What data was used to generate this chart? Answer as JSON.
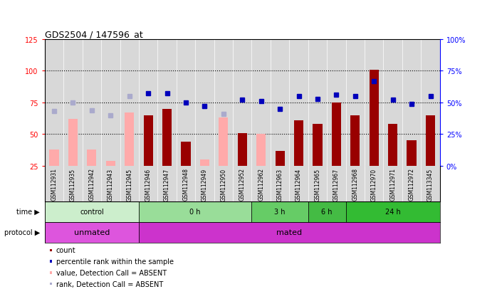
{
  "title": "GDS2504 / 147596_at",
  "samples": [
    "GSM112931",
    "GSM112935",
    "GSM112942",
    "GSM112943",
    "GSM112945",
    "GSM112946",
    "GSM112947",
    "GSM112948",
    "GSM112949",
    "GSM112950",
    "GSM112952",
    "GSM112962",
    "GSM112963",
    "GSM112964",
    "GSM112965",
    "GSM112967",
    "GSM112968",
    "GSM112970",
    "GSM112971",
    "GSM112972",
    "GSM113345"
  ],
  "count_values": [
    null,
    null,
    null,
    null,
    null,
    65,
    70,
    44,
    null,
    null,
    51,
    null,
    37,
    61,
    58,
    75,
    65,
    101,
    58,
    45,
    65
  ],
  "count_absent": [
    38,
    62,
    38,
    29,
    67,
    null,
    null,
    null,
    30,
    63,
    null,
    50,
    null,
    null,
    null,
    null,
    null,
    null,
    null,
    null,
    null
  ],
  "rank_present": [
    null,
    null,
    null,
    null,
    null,
    57,
    57,
    50,
    47,
    null,
    52,
    51,
    45,
    55,
    53,
    56,
    55,
    67,
    52,
    49,
    55
  ],
  "rank_absent": [
    43,
    50,
    44,
    40,
    55,
    null,
    null,
    null,
    47,
    41,
    null,
    null,
    null,
    null,
    null,
    null,
    null,
    null,
    null,
    null,
    null
  ],
  "ylim_left": [
    25,
    125
  ],
  "ylim_right": [
    0,
    100
  ],
  "yticks_left": [
    25,
    50,
    75,
    100,
    125
  ],
  "yticks_right": [
    0,
    25,
    50,
    75,
    100
  ],
  "ytick_labels_right": [
    "0%",
    "25%",
    "50%",
    "75%",
    "100%"
  ],
  "hlines": [
    50,
    75,
    100
  ],
  "time_groups": [
    {
      "label": "control",
      "start": 0,
      "end": 5,
      "color": "#cceecc"
    },
    {
      "label": "0 h",
      "start": 5,
      "end": 11,
      "color": "#99dd99"
    },
    {
      "label": "3 h",
      "start": 11,
      "end": 14,
      "color": "#66cc66"
    },
    {
      "label": "6 h",
      "start": 14,
      "end": 16,
      "color": "#44bb44"
    },
    {
      "label": "24 h",
      "start": 16,
      "end": 21,
      "color": "#33bb33"
    }
  ],
  "protocol_groups": [
    {
      "label": "unmated",
      "start": 0,
      "end": 5,
      "color": "#dd55dd"
    },
    {
      "label": "mated",
      "start": 5,
      "end": 21,
      "color": "#cc33cc"
    }
  ],
  "bar_color_present": "#990000",
  "bar_color_absent": "#ffaaaa",
  "marker_color_present": "#0000bb",
  "marker_color_absent": "#aaaacc",
  "bar_width": 0.5,
  "marker_size": 5,
  "background_color": "#d8d8d8",
  "legend_items": [
    {
      "color": "#990000",
      "label": "count"
    },
    {
      "color": "#0000bb",
      "label": "percentile rank within the sample"
    },
    {
      "color": "#ffaaaa",
      "label": "value, Detection Call = ABSENT"
    },
    {
      "color": "#aaaacc",
      "label": "rank, Detection Call = ABSENT"
    }
  ]
}
